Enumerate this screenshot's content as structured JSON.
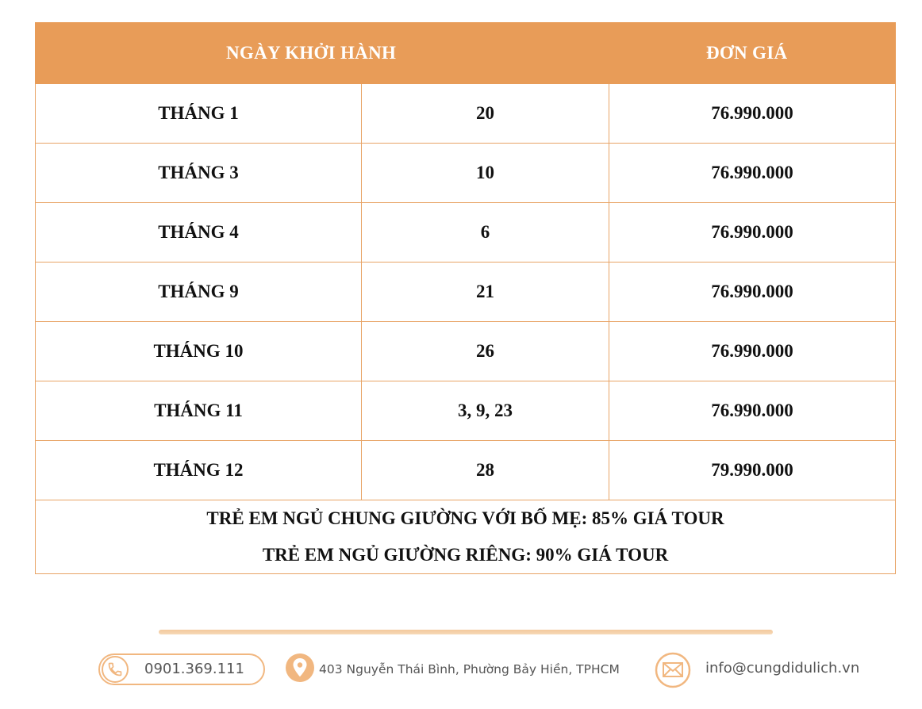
{
  "table": {
    "header": {
      "departure": "NGÀY KHỞI HÀNH",
      "price": "ĐƠN GIÁ"
    },
    "rows": [
      {
        "month": "THÁNG 1",
        "days": "20",
        "price": "76.990.000"
      },
      {
        "month": "THÁNG 3",
        "days": "10",
        "price": "76.990.000"
      },
      {
        "month": "THÁNG 4",
        "days": "6",
        "price": "76.990.000"
      },
      {
        "month": "THÁNG 9",
        "days": "21",
        "price": "76.990.000"
      },
      {
        "month": "THÁNG 10",
        "days": "26",
        "price": "76.990.000"
      },
      {
        "month": "THÁNG 11",
        "days": "3, 9, 23",
        "price": "76.990.000"
      },
      {
        "month": "THÁNG 12",
        "days": "28",
        "price": "79.990.000"
      }
    ],
    "notes": [
      "TRẺ EM NGỦ CHUNG GIƯỜNG VỚI BỐ MẸ: 85% GIÁ TOUR",
      "TRẺ EM NGỦ GIƯỜNG RIÊNG: 90% GIÁ TOUR"
    ]
  },
  "footer": {
    "phone": "0901.369.111",
    "address": "403 Nguyễn Thái Bình, Phường Bảy Hiền, TPHCM",
    "email": "info@cungdidulich.vn",
    "icons": [
      "phone-icon",
      "location-pin-icon",
      "mail-icon"
    ]
  },
  "colors": {
    "header_bg": "#e89c58",
    "border": "#e8a466",
    "accent_light": "#f1b780"
  }
}
